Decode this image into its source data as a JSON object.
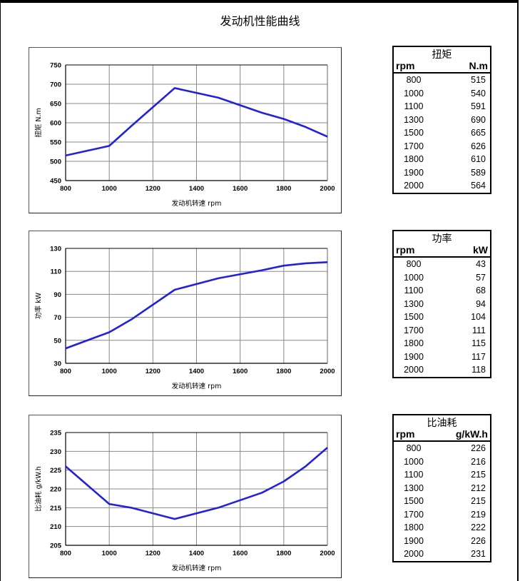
{
  "page": {
    "title": "发动机性能曲线"
  },
  "tables": [
    {
      "name": "扭矩",
      "col1": "rpm",
      "col2": "N.m",
      "rows": [
        [
          "800",
          "515"
        ],
        [
          "1000",
          "540"
        ],
        [
          "1100",
          "591"
        ],
        [
          "1300",
          "690"
        ],
        [
          "1500",
          "665"
        ],
        [
          "1700",
          "626"
        ],
        [
          "1800",
          "610"
        ],
        [
          "1900",
          "589"
        ],
        [
          "2000",
          "564"
        ]
      ]
    },
    {
      "name": "功率",
      "col1": "rpm",
      "col2": "kW",
      "rows": [
        [
          "800",
          "43"
        ],
        [
          "1000",
          "57"
        ],
        [
          "1100",
          "68"
        ],
        [
          "1300",
          "94"
        ],
        [
          "1500",
          "104"
        ],
        [
          "1700",
          "111"
        ],
        [
          "1800",
          "115"
        ],
        [
          "1900",
          "117"
        ],
        [
          "2000",
          "118"
        ]
      ]
    },
    {
      "name": "比油耗",
      "col1": "rpm",
      "col2": "g/kW.h",
      "rows": [
        [
          "800",
          "226"
        ],
        [
          "1000",
          "216"
        ],
        [
          "1100",
          "215"
        ],
        [
          "1300",
          "212"
        ],
        [
          "1500",
          "215"
        ],
        [
          "1700",
          "219"
        ],
        [
          "1800",
          "222"
        ],
        [
          "1900",
          "226"
        ],
        [
          "2000",
          "231"
        ]
      ]
    }
  ],
  "colors": {
    "line": "#2222DD",
    "grid": "#888888",
    "axis": "#000000"
  },
  "chart_data": [
    {
      "type": "line",
      "title": "扭矩",
      "xlabel": "发动机转速  rpm",
      "ylabel": "扭矩  N.m",
      "x": [
        800,
        1000,
        1100,
        1300,
        1500,
        1700,
        1800,
        1900,
        2000
      ],
      "series": [
        {
          "name": "扭矩",
          "values": [
            515,
            540,
            591,
            690,
            665,
            626,
            610,
            589,
            564
          ]
        }
      ],
      "xlim": [
        800,
        2000
      ],
      "ylim": [
        450,
        750
      ],
      "xticks": [
        800,
        1000,
        1200,
        1400,
        1600,
        1800,
        2000
      ],
      "yticks": [
        450,
        500,
        550,
        600,
        650,
        700,
        750
      ],
      "grid": true,
      "legend": "none"
    },
    {
      "type": "line",
      "title": "功率",
      "xlabel": "发动机转速  rpm",
      "ylabel": "功率  kW",
      "x": [
        800,
        1000,
        1100,
        1300,
        1500,
        1700,
        1800,
        1900,
        2000
      ],
      "series": [
        {
          "name": "功率",
          "values": [
            43,
            57,
            68,
            94,
            104,
            111,
            115,
            117,
            118
          ]
        }
      ],
      "xlim": [
        800,
        2000
      ],
      "ylim": [
        30,
        130
      ],
      "xticks": [
        800,
        1000,
        1200,
        1400,
        1600,
        1800,
        2000
      ],
      "yticks": [
        30,
        50,
        70,
        90,
        110,
        130
      ],
      "grid": true,
      "legend": "none"
    },
    {
      "type": "line",
      "title": "比油耗",
      "xlabel": "发动机转速  rpm",
      "ylabel": "比油耗  g/kW.h",
      "x": [
        800,
        1000,
        1100,
        1300,
        1500,
        1700,
        1800,
        1900,
        2000
      ],
      "series": [
        {
          "name": "比油耗",
          "values": [
            226,
            216,
            215,
            212,
            215,
            219,
            222,
            226,
            231
          ]
        }
      ],
      "xlim": [
        800,
        2000
      ],
      "ylim": [
        205,
        235
      ],
      "xticks": [
        800,
        1000,
        1200,
        1400,
        1600,
        1800,
        2000
      ],
      "yticks": [
        205,
        210,
        215,
        220,
        225,
        230,
        235
      ],
      "grid": true,
      "legend": "none"
    }
  ]
}
